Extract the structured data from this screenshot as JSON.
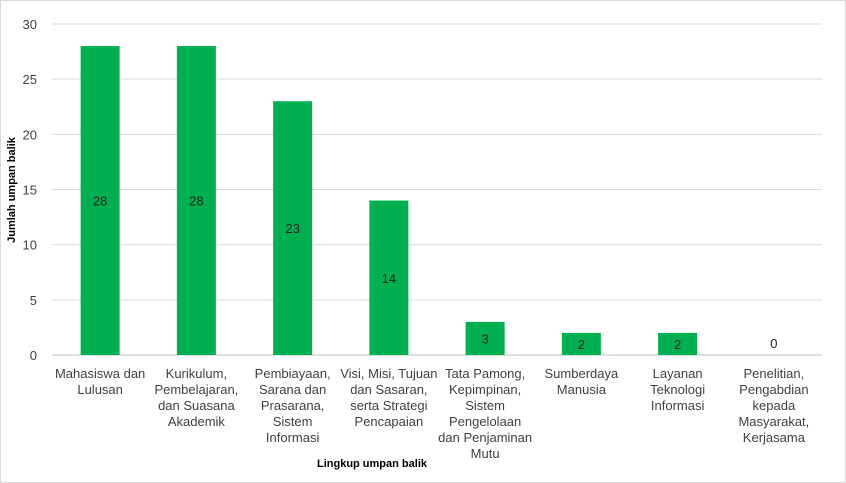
{
  "chart_data": {
    "type": "bar",
    "categories": [
      [
        "Mahasiswa dan",
        "Lulusan"
      ],
      [
        "Kurikulum,",
        "Pembelajaran,",
        "dan Suasana",
        "Akademik"
      ],
      [
        "Pembiayaan,",
        "Sarana dan",
        "Prasarana,",
        "Sistem",
        "Informasi"
      ],
      [
        "Visi, Misi, Tujuan",
        "dan Sasaran,",
        "serta Strategi",
        "Pencapaian"
      ],
      [
        "Tata Pamong,",
        "Kepimpinan,",
        "Sistem",
        "Pengelolaan",
        "dan Penjaminan",
        "Mutu"
      ],
      [
        "Sumberdaya",
        "Manusia"
      ],
      [
        "Layanan",
        "Teknologi",
        "Informasi"
      ],
      [
        "Penelitian,",
        "Pengabdian",
        "kepada",
        "Masyarakat,",
        "Kerjasama"
      ]
    ],
    "values": [
      28,
      28,
      23,
      14,
      3,
      2,
      2,
      0
    ],
    "title": "",
    "xlabel": "Lingkup umpan balik",
    "ylabel": "Jumlah umpan balik",
    "ylim": [
      0,
      30
    ],
    "yticks": [
      0,
      5,
      10,
      15,
      20,
      25,
      30
    ],
    "grid": true,
    "legend": "none",
    "colors": {
      "bar": "#00b050",
      "grid": "#d9d9d9",
      "axis": "#bfbfbf"
    }
  }
}
